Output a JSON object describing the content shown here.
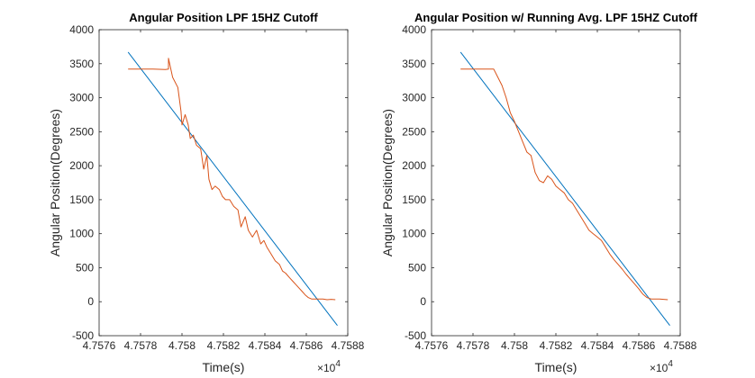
{
  "figure": {
    "background": "#ffffff"
  },
  "colors": {
    "fit_line": "#0072BD",
    "signal": "#D95319",
    "axis": "#262626"
  },
  "chart_data": [
    {
      "type": "line",
      "title": "Angular Position LPF 15HZ Cutoff",
      "xlabel": "Time(s)",
      "ylabel": "Angular Position(Degrees)",
      "x_multiplier": "×10",
      "x_multiplier_exp": "4",
      "xlim": [
        4.7576,
        4.7588
      ],
      "ylim": [
        -500,
        4000
      ],
      "xticks": [
        "4.7576",
        "4.7578",
        "4.758",
        "4.7582",
        "4.7584",
        "4.7586",
        "4.7588"
      ],
      "xtick_values": [
        4.7576,
        4.7578,
        4.758,
        4.7582,
        4.7584,
        4.7586,
        4.7588
      ],
      "yticks": [
        "-500",
        "0",
        "500",
        "1000",
        "1500",
        "2000",
        "2500",
        "3000",
        "3500",
        "4000"
      ],
      "ytick_values": [
        -500,
        0,
        500,
        1000,
        1500,
        2000,
        2500,
        3000,
        3500,
        4000
      ],
      "grid": false,
      "box": true,
      "series": [
        {
          "color": "#0072BD",
          "x": [
            4.75774,
            4.75875
          ],
          "y": [
            3670,
            -350
          ]
        },
        {
          "color": "#D95319",
          "x": [
            4.75774,
            4.7578,
            4.75786,
            4.75792,
            4.757935,
            4.757935,
            4.757955,
            4.75798,
            4.757995,
            4.758,
            4.758015,
            4.75803,
            4.75804,
            4.758055,
            4.75807,
            4.75809,
            4.758105,
            4.75812,
            4.75813,
            4.758145,
            4.75816,
            4.75818,
            4.758195,
            4.75821,
            4.75823,
            4.75825,
            4.75827,
            4.758285,
            4.758305,
            4.75832,
            4.75834,
            4.75836,
            4.75838,
            4.758395,
            4.75841,
            4.75843,
            4.75845,
            4.75847,
            4.758485,
            4.7585,
            4.75852,
            4.758535,
            4.75855,
            4.758565,
            4.75858,
            4.758595,
            4.75861,
            4.758625,
            4.75864,
            4.75866,
            4.75868,
            4.7587,
            4.75872,
            4.75874
          ],
          "y": [
            3420,
            3420,
            3420,
            3415,
            3420,
            3580,
            3300,
            3150,
            2800,
            2600,
            2750,
            2600,
            2400,
            2450,
            2300,
            2250,
            1950,
            2150,
            1800,
            1650,
            1700,
            1650,
            1550,
            1500,
            1500,
            1400,
            1350,
            1100,
            1250,
            1050,
            950,
            1050,
            850,
            900,
            800,
            700,
            600,
            550,
            450,
            420,
            350,
            300,
            250,
            200,
            150,
            100,
            60,
            40,
            40,
            40,
            40,
            30,
            35,
            30
          ]
        }
      ]
    },
    {
      "type": "line",
      "title": "Angular Position w/ Running Avg. LPF 15HZ Cutoff",
      "xlabel": "Time(s)",
      "ylabel": "Angular Position(Degrees)",
      "x_multiplier": "×10",
      "x_multiplier_exp": "4",
      "xlim": [
        4.7576,
        4.7588
      ],
      "ylim": [
        -500,
        4000
      ],
      "xticks": [
        "4.7576",
        "4.7578",
        "4.758",
        "4.7582",
        "4.7584",
        "4.7586",
        "4.7588"
      ],
      "xtick_values": [
        4.7576,
        4.7578,
        4.758,
        4.7582,
        4.7584,
        4.7586,
        4.7588
      ],
      "yticks": [
        "-500",
        "0",
        "500",
        "1000",
        "1500",
        "2000",
        "2500",
        "3000",
        "3500",
        "4000"
      ],
      "ytick_values": [
        -500,
        0,
        500,
        1000,
        1500,
        2000,
        2500,
        3000,
        3500,
        4000
      ],
      "grid": false,
      "box": true,
      "series": [
        {
          "color": "#0072BD",
          "x": [
            4.75774,
            4.75875
          ],
          "y": [
            3670,
            -350
          ]
        },
        {
          "color": "#D95319",
          "x": [
            4.75774,
            4.7578,
            4.75786,
            4.7579,
            4.75792,
            4.75794,
            4.75796,
            4.75798,
            4.758,
            4.75802,
            4.75804,
            4.75806,
            4.75808,
            4.7581,
            4.75812,
            4.75814,
            4.75816,
            4.75818,
            4.7582,
            4.75822,
            4.75824,
            4.75826,
            4.75828,
            4.7583,
            4.75832,
            4.75834,
            4.75836,
            4.75838,
            4.7584,
            4.75842,
            4.75844,
            4.75846,
            4.75848,
            4.7585,
            4.75852,
            4.75854,
            4.75856,
            4.75858,
            4.7586,
            4.75862,
            4.75864,
            4.75866,
            4.7587,
            4.75874
          ],
          "y": [
            3420,
            3420,
            3420,
            3420,
            3300,
            3180,
            3000,
            2780,
            2650,
            2500,
            2350,
            2200,
            2150,
            1900,
            1780,
            1750,
            1850,
            1800,
            1700,
            1650,
            1600,
            1500,
            1450,
            1350,
            1250,
            1150,
            1050,
            1000,
            950,
            900,
            800,
            700,
            620,
            550,
            480,
            400,
            330,
            260,
            190,
            110,
            60,
            40,
            40,
            30
          ]
        }
      ]
    }
  ]
}
